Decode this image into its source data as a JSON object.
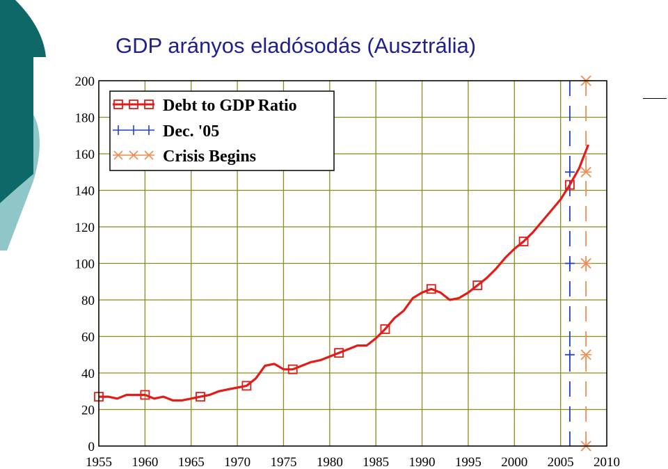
{
  "slide": {
    "title": "GDP arányos eladósodás (Ausztrália)"
  },
  "colors": {
    "title": "#1f1f8f",
    "deco_dark": "#0e6867",
    "deco_light": "#8fc7c9",
    "grid": "#8b8b1e",
    "debt_line": "#e41b17",
    "dec05_line": "#1f3fcf",
    "crisis_line": "#f08c50",
    "plot_bg": "#ffffff"
  },
  "chart_data": {
    "type": "line",
    "title": "",
    "xlabel": "",
    "ylabel": "",
    "xlim": [
      1955,
      2010
    ],
    "ylim": [
      0,
      200
    ],
    "x_ticks": [
      "1955",
      "1960",
      "1965",
      "1970",
      "1975",
      "1980",
      "1985",
      "1990",
      "1995",
      "2000",
      "2005",
      "2010"
    ],
    "y_ticks": [
      "0",
      "20",
      "40",
      "60",
      "80",
      "100",
      "120",
      "140",
      "160",
      "180",
      "200"
    ],
    "grid": true,
    "legend_position": "top-left",
    "legend": [
      "Debt to GDP Ratio",
      "Dec. '05",
      "Crisis Begins"
    ],
    "series": [
      {
        "name": "Debt to GDP Ratio",
        "style": "line-square-markers",
        "x": [
          1955,
          1956,
          1957,
          1958,
          1959,
          1960,
          1961,
          1962,
          1963,
          1964,
          1965,
          1966,
          1967,
          1968,
          1969,
          1970,
          1971,
          1972,
          1973,
          1974,
          1975,
          1976,
          1977,
          1978,
          1979,
          1980,
          1981,
          1982,
          1983,
          1984,
          1985,
          1986,
          1987,
          1988,
          1989,
          1990,
          1991,
          1992,
          1993,
          1994,
          1995,
          1996,
          1997,
          1998,
          1999,
          2000,
          2001,
          2002,
          2003,
          2004,
          2005,
          2006,
          2007,
          2008
        ],
        "y": [
          27,
          27,
          26,
          28,
          28,
          28,
          26,
          27,
          25,
          25,
          26,
          27,
          28,
          30,
          31,
          32,
          33,
          37,
          44,
          45,
          42,
          42,
          44,
          46,
          47,
          49,
          51,
          53,
          55,
          55,
          59,
          64,
          70,
          74,
          81,
          84,
          86,
          84,
          80,
          81,
          84,
          88,
          92,
          97,
          103,
          108,
          112,
          117,
          123,
          129,
          135,
          143,
          152,
          165
        ],
        "marker_x": [
          1955,
          1960,
          1966,
          1971,
          1976,
          1981,
          1986,
          1991,
          1996,
          2001,
          2006
        ]
      },
      {
        "name": "Dec. '05",
        "style": "vertical-dashed-plus",
        "x_value": 2006,
        "marker_y": [
          50,
          100,
          150
        ]
      },
      {
        "name": "Crisis Begins",
        "style": "vertical-dashed-x",
        "x_value": 2007.75,
        "marker_y": [
          0,
          50,
          100,
          150,
          200
        ]
      }
    ]
  }
}
